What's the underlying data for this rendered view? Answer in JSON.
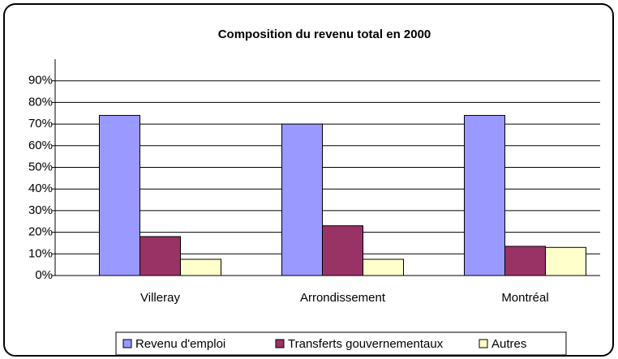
{
  "chart_data": {
    "type": "bar",
    "title": "Composition du revenu total en 2000",
    "categories": [
      "Villeray",
      "Arrondissement",
      "Montréal"
    ],
    "series": [
      {
        "name": "Revenu d'emploi",
        "color": "#9999ff",
        "values": [
          74,
          70,
          74
        ]
      },
      {
        "name": "Transferts gouvernementaux",
        "color": "#993366",
        "values": [
          18,
          23,
          13.5
        ]
      },
      {
        "name": "Autres",
        "color": "#ffffcc",
        "values": [
          7.5,
          7.5,
          13
        ]
      }
    ],
    "ylim": [
      0,
      100
    ],
    "yticks": [
      {
        "value": 0,
        "label": "0%"
      },
      {
        "value": 10,
        "label": "10%"
      },
      {
        "value": 20,
        "label": "20%"
      },
      {
        "value": 30,
        "label": "30%"
      },
      {
        "value": 40,
        "label": "40%"
      },
      {
        "value": 50,
        "label": "50%"
      },
      {
        "value": 60,
        "label": "60%"
      },
      {
        "value": 70,
        "label": "70%"
      },
      {
        "value": 80,
        "label": "80%"
      },
      {
        "value": 90,
        "label": "90%"
      }
    ],
    "grid": true,
    "legend": "bottom"
  }
}
